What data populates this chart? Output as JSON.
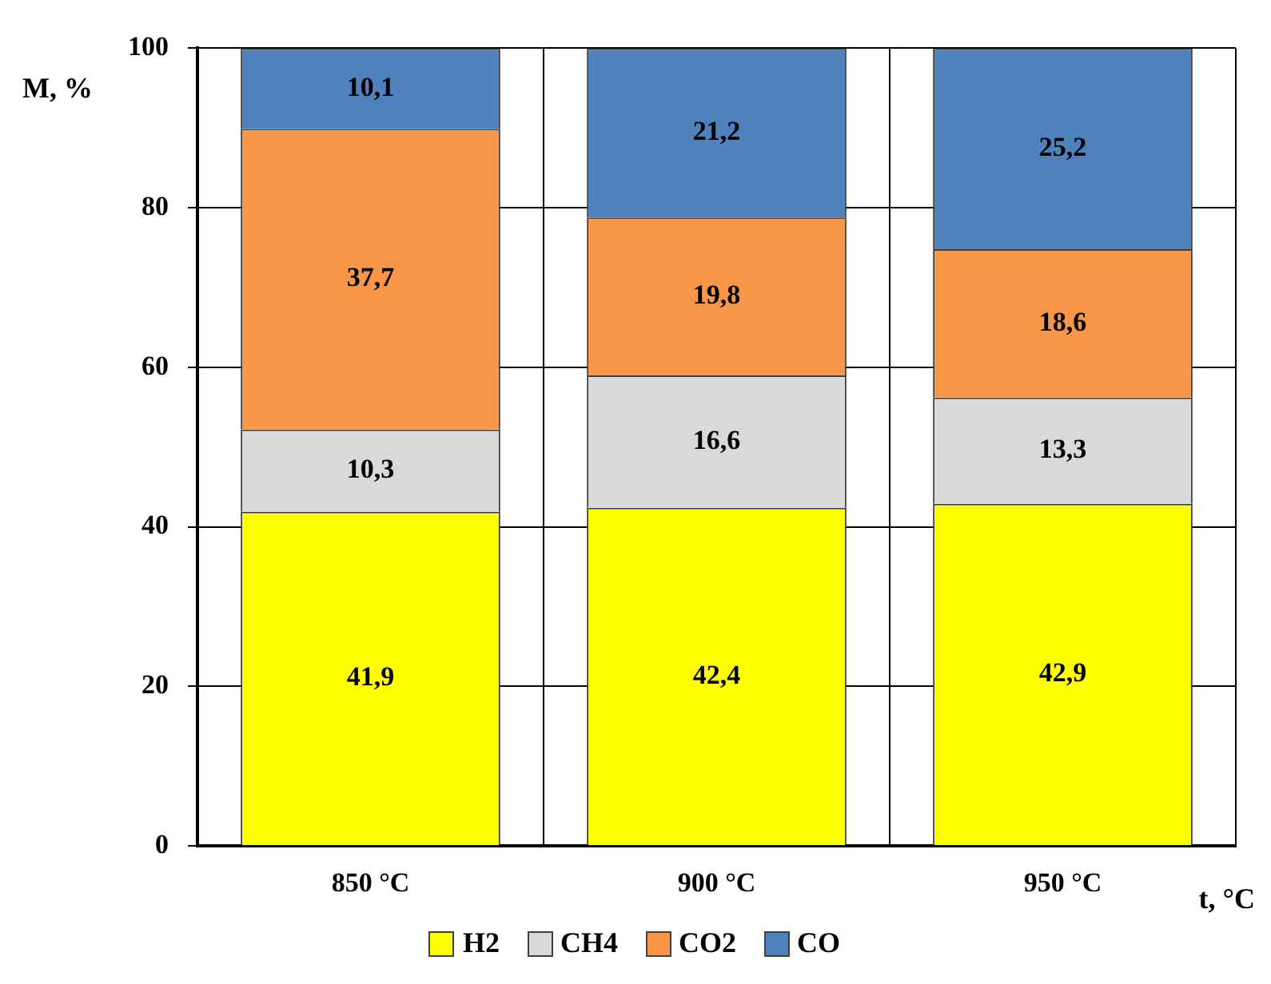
{
  "chart_data": {
    "type": "bar",
    "stacked": true,
    "xlabel": "t, °C",
    "ylabel": "M, %",
    "categories": [
      "850 °C",
      "900 °C",
      "950 °C"
    ],
    "series": [
      {
        "name": "H2",
        "color": "#ffff00",
        "values": [
          41.9,
          42.4,
          42.9
        ],
        "value_labels": [
          "41,9",
          "42,4",
          "42,9"
        ]
      },
      {
        "name": "CH4",
        "color": "#d9d9d9",
        "values": [
          10.3,
          16.6,
          13.3
        ],
        "value_labels": [
          "10,3",
          "16,6",
          "13,3"
        ]
      },
      {
        "name": "CO2",
        "color": "#f79646",
        "values": [
          37.7,
          19.8,
          18.6
        ],
        "value_labels": [
          "37,7",
          "19,8",
          "18,6"
        ]
      },
      {
        "name": "CO",
        "color": "#4f81bd",
        "values": [
          10.1,
          21.2,
          25.2
        ],
        "value_labels": [
          "10,1",
          "21,2",
          "25,2"
        ]
      }
    ],
    "ylim": [
      0,
      100
    ],
    "yticks": [
      0,
      20,
      40,
      60,
      80,
      100
    ],
    "grid": true,
    "legend": "bottom"
  }
}
